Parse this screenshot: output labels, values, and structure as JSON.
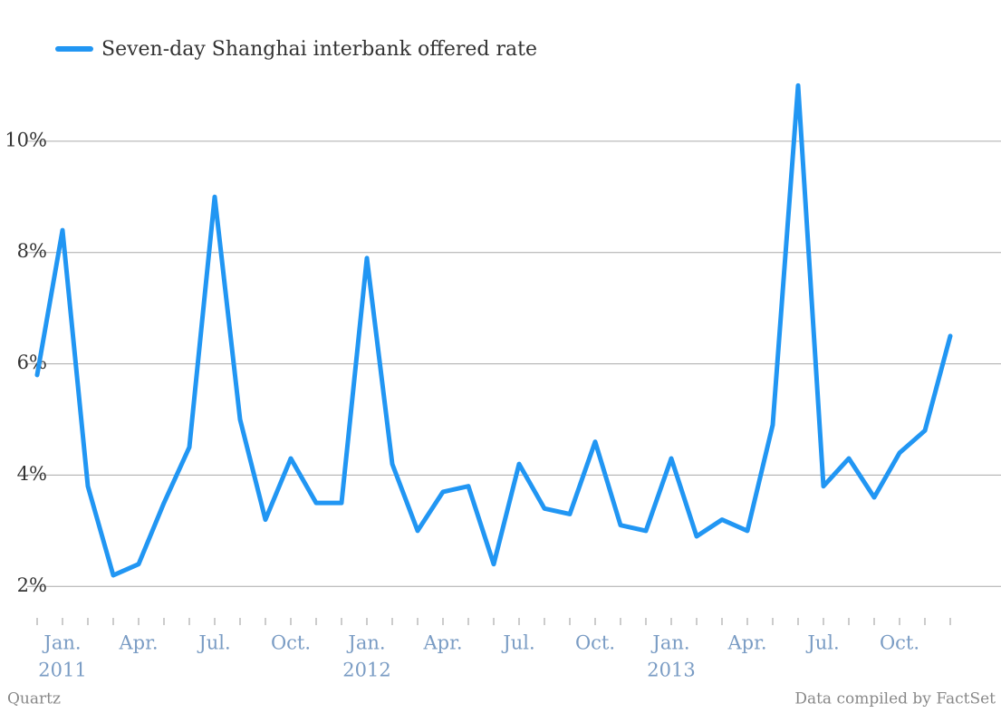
{
  "chart_data": {
    "type": "line",
    "series": [
      {
        "name": "Seven-day Shanghai interbank offered rate",
        "color": "#2196f3",
        "values": [
          5.8,
          8.4,
          3.8,
          2.2,
          2.4,
          3.5,
          4.5,
          9.0,
          5.0,
          3.2,
          4.3,
          3.5,
          3.5,
          7.9,
          4.2,
          3.0,
          3.7,
          3.8,
          2.4,
          4.2,
          3.4,
          3.3,
          4.6,
          3.1,
          3.0,
          4.3,
          2.9,
          3.2,
          3.0,
          4.9,
          11.0,
          3.8,
          4.3,
          3.6,
          4.4,
          4.8,
          6.5
        ]
      }
    ],
    "x": [
      "2010-12",
      "2011-01",
      "2011-02",
      "2011-03",
      "2011-04",
      "2011-05",
      "2011-06",
      "2011-07",
      "2011-08",
      "2011-09",
      "2011-10",
      "2011-11",
      "2011-12",
      "2012-01",
      "2012-02",
      "2012-03",
      "2012-04",
      "2012-05",
      "2012-06",
      "2012-07",
      "2012-08",
      "2012-09",
      "2012-10",
      "2012-11",
      "2012-12",
      "2013-01",
      "2013-02",
      "2013-03",
      "2013-04",
      "2013-05",
      "2013-06",
      "2013-07",
      "2013-08",
      "2013-09",
      "2013-10",
      "2013-11",
      "2013-12"
    ],
    "xlim": [
      "2010-11",
      "2014-01"
    ],
    "xticks": [
      {
        "value": "2011-01",
        "label": "Jan."
      },
      {
        "value": "2011-04",
        "label": "Apr."
      },
      {
        "value": "2011-07",
        "label": "Jul."
      },
      {
        "value": "2011-10",
        "label": "Oct."
      },
      {
        "value": "2012-01",
        "label": "Jan."
      },
      {
        "value": "2012-04",
        "label": "Apr."
      },
      {
        "value": "2012-07",
        "label": "Jul."
      },
      {
        "value": "2012-10",
        "label": "Oct."
      },
      {
        "value": "2013-01",
        "label": "Jan."
      },
      {
        "value": "2013-04",
        "label": "Apr."
      },
      {
        "value": "2013-07",
        "label": "Jul."
      },
      {
        "value": "2013-10",
        "label": "Oct."
      }
    ],
    "xtick_years": [
      {
        "value": "2011-01",
        "label": "2011"
      },
      {
        "value": "2012-01",
        "label": "2012"
      },
      {
        "value": "2013-01",
        "label": "2013"
      }
    ],
    "ylim": [
      1.5,
      11.3
    ],
    "yticks": [
      {
        "value": 2,
        "label": "2%"
      },
      {
        "value": 4,
        "label": "4%"
      },
      {
        "value": 6,
        "label": "6%"
      },
      {
        "value": 8,
        "label": "8%"
      },
      {
        "value": 10,
        "label": "10%"
      }
    ],
    "grid": true,
    "source": "Data compiled by FactSet",
    "credit": "Quartz"
  }
}
